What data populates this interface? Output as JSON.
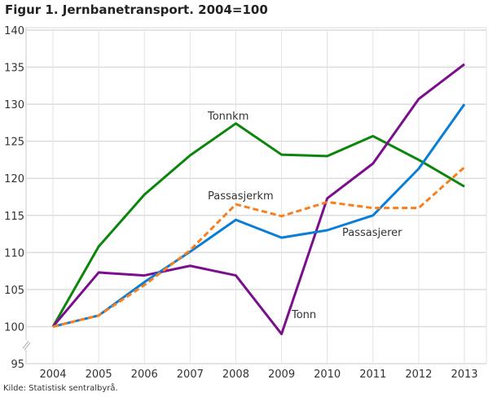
{
  "chart_data": {
    "type": "line",
    "title": "Figur 1. Jernbanetransport. 2004=100",
    "source": "Kilde: Statistisk sentralbyrå.",
    "xlabel": "",
    "ylabel": "",
    "x": [
      "2004",
      "2005",
      "2006",
      "2007",
      "2008",
      "2009",
      "2010",
      "2011",
      "2012",
      "2013"
    ],
    "ylim": [
      95,
      140
    ],
    "yticks": [
      "95",
      "100",
      "105",
      "110",
      "115",
      "120",
      "125",
      "130",
      "135",
      "140"
    ],
    "grid": true,
    "axis_break": true,
    "series": [
      {
        "name": "Tonnkm",
        "color": "#0b850b",
        "dashed": false,
        "values": [
          100,
          110.8,
          117.8,
          123.1,
          127.4,
          123.2,
          123.0,
          125.7,
          122.5,
          118.9
        ]
      },
      {
        "name": "Passasjerkm",
        "color": "#f77f1e",
        "dashed": true,
        "values": [
          100,
          101.5,
          105.6,
          110.3,
          116.5,
          114.9,
          116.8,
          116.0,
          116.0,
          121.5
        ]
      },
      {
        "name": "Passasjerer",
        "color": "#0a7ed6",
        "dashed": false,
        "values": [
          100,
          101.5,
          106.0,
          110.1,
          114.4,
          112.0,
          113.0,
          115.0,
          121.3,
          130.0
        ]
      },
      {
        "name": "Tonn",
        "color": "#7a0e8c",
        "dashed": false,
        "values": [
          100,
          107.3,
          106.9,
          108.2,
          106.9,
          99.0,
          117.3,
          122.0,
          130.7,
          135.4
        ]
      }
    ]
  }
}
